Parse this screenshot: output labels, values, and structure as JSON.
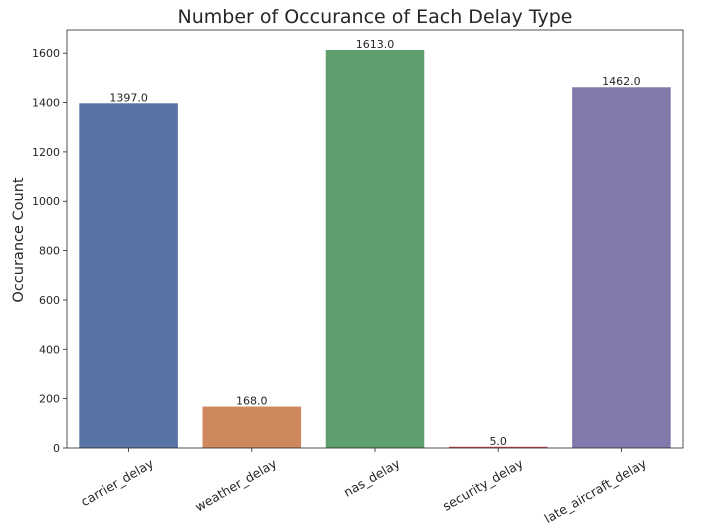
{
  "chart_data": {
    "type": "bar",
    "title": "Number of Occurance of Each Delay Type",
    "xlabel": "",
    "ylabel": "Occurance Count",
    "categories": [
      "carrier_delay",
      "weather_delay",
      "nas_delay",
      "security_delay",
      "late_aircraft_delay"
    ],
    "values": [
      1397.0,
      168.0,
      1613.0,
      5.0,
      1462.0
    ],
    "value_labels": [
      "1397.0",
      "168.0",
      "1613.0",
      "5.0",
      "1462.0"
    ],
    "colors": [
      "#5874a5",
      "#cf885e",
      "#5f9e6e",
      "#c44e52",
      "#8479ad"
    ],
    "ylim": [
      0,
      1694
    ],
    "yticks": [
      0,
      200,
      400,
      600,
      800,
      1000,
      1200,
      1400,
      1600
    ],
    "ytick_labels": [
      "0",
      "200",
      "400",
      "600",
      "800",
      "1000",
      "1200",
      "1400",
      "1600"
    ],
    "x_tick_rotation_deg": -30,
    "grid": false,
    "legend": "none"
  }
}
